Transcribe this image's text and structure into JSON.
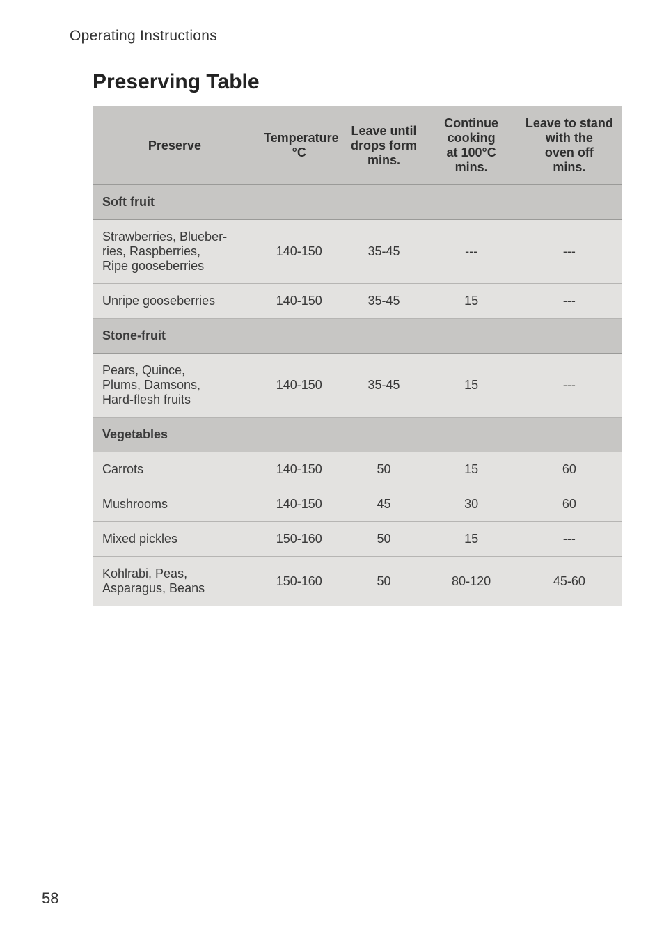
{
  "page": {
    "running_header": "Operating Instructions",
    "section_title": "Preserving Table",
    "page_number": "58"
  },
  "table": {
    "background_header": "#c7c6c4",
    "background_cell": "#e3e2e0",
    "border_color_header": "#9a9a98",
    "border_color_cell": "#b6b5b3",
    "columns": [
      {
        "key": "preserve",
        "label": "Preserve",
        "width": "31%",
        "align": "left"
      },
      {
        "key": "temp",
        "label": "Temperature\n°C",
        "width": "16%",
        "align": "center"
      },
      {
        "key": "drops",
        "label": "Leave until\ndrops form\nmins.",
        "width": "16%",
        "align": "center"
      },
      {
        "key": "cont",
        "label": "Continue\ncooking\nat 100°C\nmins.",
        "width": "17%",
        "align": "center"
      },
      {
        "key": "stand",
        "label": "Leave to stand\nwith the\noven off\nmins.",
        "width": "20%",
        "align": "center"
      }
    ],
    "header_labels": {
      "preserve": "Preserve",
      "temp_l1": "Temperature",
      "temp_l2": "°C",
      "drops_l1": "Leave until",
      "drops_l2": "drops form",
      "drops_l3": "mins.",
      "cont_l1": "Continue",
      "cont_l2": "cooking",
      "cont_l3": "at 100°C",
      "cont_l4": "mins.",
      "stand_l1": "Leave to stand",
      "stand_l2": "with the",
      "stand_l3": "oven off",
      "stand_l4": "mins."
    },
    "categories": {
      "soft_fruit": "Soft fruit",
      "stone_fruit": "Stone-fruit",
      "vegetables": "Vegetables"
    },
    "rows": {
      "strawberries": {
        "name_l1": "Strawberries, Blueber-",
        "name_l2": "ries, Raspberries,",
        "name_l3": "Ripe gooseberries",
        "temp": "140-150",
        "drops": "35-45",
        "cont": "---",
        "stand": "---"
      },
      "unripe_goose": {
        "name": "Unripe gooseberries",
        "temp": "140-150",
        "drops": "35-45",
        "cont": "15",
        "stand": "---"
      },
      "pears": {
        "name_l1": "Pears, Quince,",
        "name_l2": "Plums, Damsons,",
        "name_l3": "Hard-flesh fruits",
        "temp": "140-150",
        "drops": "35-45",
        "cont": "15",
        "stand": "---"
      },
      "carrots": {
        "name": "Carrots",
        "temp": "140-150",
        "drops": "50",
        "cont": "15",
        "stand": "60"
      },
      "mushrooms": {
        "name": "Mushrooms",
        "temp": "140-150",
        "drops": "45",
        "cont": "30",
        "stand": "60"
      },
      "mixed_pickles": {
        "name": "Mixed pickles",
        "temp": "150-160",
        "drops": "50",
        "cont": "15",
        "stand": "---"
      },
      "kohlrabi": {
        "name_l1": "Kohlrabi, Peas,",
        "name_l2": "Asparagus, Beans",
        "temp": "150-160",
        "drops": "50",
        "cont": "80-120",
        "stand": "45-60"
      }
    }
  }
}
